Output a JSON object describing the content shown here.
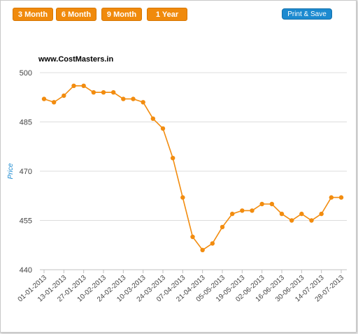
{
  "toolbar": {
    "range_buttons": [
      "3 Month",
      "6 Month",
      "9 Month",
      "1 Year"
    ],
    "print_label": "Print & Save"
  },
  "colors": {
    "accent": "#f08a0c",
    "button_blue": "#1c8ad0",
    "line": "#f28c0f"
  },
  "chart_data": {
    "type": "line",
    "title": "www.CostMasters.in",
    "xlabel": "",
    "ylabel": "Price",
    "ylim": [
      440,
      500
    ],
    "yticks": [
      440,
      455,
      470,
      485,
      500
    ],
    "x_tick_labels": [
      "01-01-2013",
      "13-01-2013",
      "27-01-2013",
      "10-02-2013",
      "24-02-2013",
      "10-03-2013",
      "24-03-2013",
      "07-04-2013",
      "21-04-2013",
      "05-05-2013",
      "19-05-2013",
      "02-06-2013",
      "16-06-2013",
      "30-06-2013",
      "14-07-2013",
      "28-07-2013"
    ],
    "grid": true,
    "legend": "none",
    "series": [
      {
        "values": [
          492,
          491,
          493,
          496,
          496,
          494,
          494,
          494,
          492,
          492,
          491,
          486,
          483,
          474,
          462,
          450,
          446,
          448,
          453,
          457,
          458,
          458,
          460,
          460,
          457,
          455,
          457,
          455,
          457,
          462,
          462
        ]
      }
    ]
  }
}
